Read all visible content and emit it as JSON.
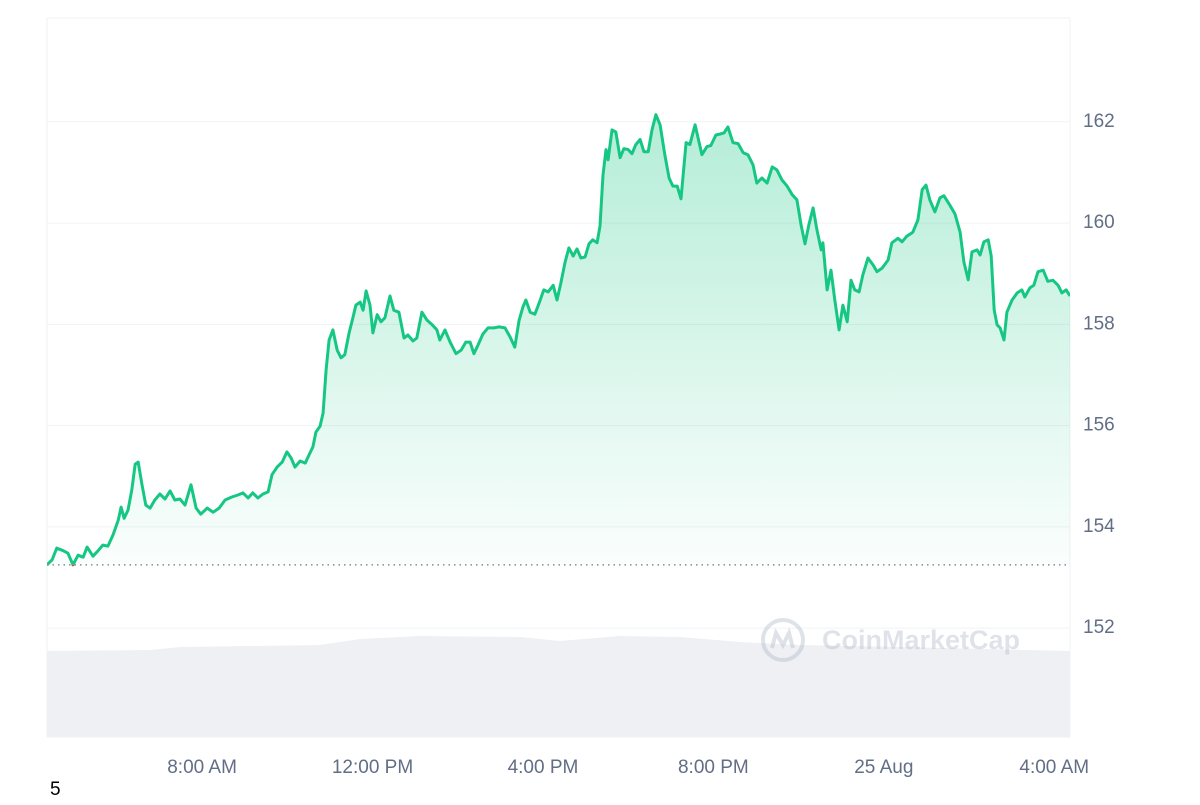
{
  "chart_data": {
    "type": "line",
    "color": "#16c784",
    "negative_color": "#ea3943",
    "grid": true,
    "baseline": 153.25,
    "watermark": "CoinMarketCap",
    "footnote": "5",
    "xlim": [
      4.36,
      28.37
    ],
    "ylim": [
      149.85,
      164.05
    ],
    "yticks": [
      152,
      154,
      156,
      158,
      160,
      162
    ],
    "xticks": [
      {
        "value": 8,
        "label": "8:00 AM"
      },
      {
        "value": 12,
        "label": "12:00 PM"
      },
      {
        "value": 16,
        "label": "4:00 PM"
      },
      {
        "value": 20,
        "label": "8:00 PM"
      },
      {
        "value": 24,
        "label": "25 Aug"
      },
      {
        "value": 28,
        "label": "4:00 AM"
      }
    ],
    "x": [
      4.36,
      4.48,
      4.59,
      4.74,
      4.85,
      4.97,
      5.09,
      5.21,
      5.3,
      5.44,
      5.56,
      5.67,
      5.79,
      5.91,
      6.03,
      6.1,
      6.17,
      6.26,
      6.35,
      6.43,
      6.5,
      6.59,
      6.68,
      6.78,
      6.89,
      7.01,
      7.13,
      7.25,
      7.36,
      7.48,
      7.6,
      7.74,
      7.86,
      7.97,
      8.12,
      8.26,
      8.4,
      8.54,
      8.7,
      8.84,
      8.96,
      9.08,
      9.19,
      9.31,
      9.43,
      9.55,
      9.64,
      9.76,
      9.88,
      9.99,
      10.09,
      10.18,
      10.3,
      10.42,
      10.51,
      10.6,
      10.67,
      10.77,
      10.84,
      10.91,
      10.98,
      11.07,
      11.17,
      11.26,
      11.35,
      11.45,
      11.54,
      11.61,
      11.71,
      11.78,
      11.85,
      11.94,
      12.01,
      12.11,
      12.2,
      12.29,
      12.41,
      12.5,
      12.62,
      12.74,
      12.83,
      12.95,
      13.04,
      13.16,
      13.28,
      13.4,
      13.51,
      13.58,
      13.7,
      13.82,
      13.96,
      14.08,
      14.19,
      14.29,
      14.38,
      14.48,
      14.59,
      14.71,
      14.85,
      14.97,
      15.11,
      15.23,
      15.34,
      15.44,
      15.53,
      15.6,
      15.7,
      15.81,
      15.91,
      16.02,
      16.12,
      16.24,
      16.33,
      16.42,
      16.52,
      16.61,
      16.71,
      16.8,
      16.89,
      16.99,
      17.08,
      17.17,
      17.27,
      17.34,
      17.41,
      17.48,
      17.53,
      17.62,
      17.71,
      17.81,
      17.9,
      18.0,
      18.09,
      18.18,
      18.28,
      18.37,
      18.47,
      18.56,
      18.65,
      18.75,
      18.86,
      18.96,
      19.05,
      19.15,
      19.24,
      19.36,
      19.45,
      19.57,
      19.66,
      19.73,
      19.85,
      19.94,
      20.06,
      20.16,
      20.25,
      20.34,
      20.46,
      20.58,
      20.7,
      20.81,
      20.93,
      21.02,
      21.14,
      21.26,
      21.38,
      21.49,
      21.61,
      21.73,
      21.85,
      21.96,
      22.06,
      22.15,
      22.24,
      22.34,
      22.43,
      22.53,
      22.57,
      22.67,
      22.76,
      22.85,
      22.95,
      23.04,
      23.14,
      23.23,
      23.32,
      23.42,
      23.51,
      23.63,
      23.75,
      23.84,
      23.96,
      24.1,
      24.19,
      24.33,
      24.43,
      24.54,
      24.68,
      24.8,
      24.9,
      24.99,
      25.08,
      25.2,
      25.32,
      25.41,
      25.53,
      25.67,
      25.79,
      25.88,
      25.98,
      26.07,
      26.19,
      26.26,
      26.35,
      26.45,
      26.52,
      26.59,
      26.66,
      26.73,
      26.82,
      26.89,
      27.01,
      27.13,
      27.24,
      27.31,
      27.43,
      27.52,
      27.62,
      27.74,
      27.85,
      27.97,
      28.09,
      28.18,
      28.28,
      28.37
    ],
    "values": [
      153.25,
      153.35,
      153.58,
      153.53,
      153.48,
      153.25,
      153.44,
      153.4,
      153.6,
      153.42,
      153.53,
      153.64,
      153.62,
      153.84,
      154.13,
      154.39,
      154.17,
      154.33,
      154.73,
      155.24,
      155.28,
      154.83,
      154.43,
      154.37,
      154.53,
      154.65,
      154.55,
      154.71,
      154.53,
      154.55,
      154.43,
      154.83,
      154.37,
      154.25,
      154.37,
      154.29,
      154.37,
      154.53,
      154.59,
      154.63,
      154.67,
      154.57,
      154.67,
      154.57,
      154.65,
      154.69,
      155.03,
      155.18,
      155.28,
      155.48,
      155.36,
      155.18,
      155.3,
      155.26,
      155.42,
      155.58,
      155.87,
      155.99,
      156.25,
      157.1,
      157.69,
      157.89,
      157.49,
      157.34,
      157.4,
      157.83,
      158.13,
      158.38,
      158.44,
      158.28,
      158.66,
      158.38,
      157.83,
      158.19,
      158.05,
      158.13,
      158.56,
      158.28,
      158.24,
      157.73,
      157.79,
      157.67,
      157.73,
      158.24,
      158.08,
      157.99,
      157.89,
      157.69,
      157.89,
      157.65,
      157.42,
      157.49,
      157.65,
      157.65,
      157.42,
      157.6,
      157.81,
      157.93,
      157.93,
      157.95,
      157.93,
      157.75,
      157.55,
      158.08,
      158.34,
      158.48,
      158.24,
      158.2,
      158.42,
      158.68,
      158.64,
      158.77,
      158.48,
      158.81,
      159.23,
      159.51,
      159.35,
      159.49,
      159.31,
      159.33,
      159.59,
      159.67,
      159.61,
      159.94,
      160.95,
      161.45,
      161.25,
      161.84,
      161.8,
      161.29,
      161.47,
      161.45,
      161.37,
      161.55,
      161.65,
      161.41,
      161.41,
      161.84,
      162.14,
      161.94,
      161.35,
      160.89,
      160.73,
      160.73,
      160.48,
      161.59,
      161.55,
      161.94,
      161.61,
      161.35,
      161.51,
      161.53,
      161.74,
      161.76,
      161.78,
      161.9,
      161.59,
      161.57,
      161.39,
      161.35,
      161.15,
      160.79,
      160.89,
      160.79,
      161.11,
      161.05,
      160.85,
      160.73,
      160.56,
      160.46,
      159.96,
      159.59,
      159.96,
      160.3,
      159.87,
      159.47,
      159.61,
      158.68,
      159.07,
      158.48,
      157.89,
      158.38,
      158.05,
      158.87,
      158.68,
      158.64,
      158.98,
      159.31,
      159.17,
      159.04,
      159.11,
      159.27,
      159.61,
      159.7,
      159.63,
      159.74,
      159.82,
      160.06,
      160.66,
      160.75,
      160.46,
      160.22,
      160.5,
      160.54,
      160.38,
      160.18,
      159.82,
      159.23,
      158.88,
      159.43,
      159.47,
      159.37,
      159.63,
      159.67,
      159.35,
      158.28,
      157.99,
      157.93,
      157.69,
      158.24,
      158.48,
      158.62,
      158.68,
      158.54,
      158.72,
      158.77,
      159.04,
      159.07,
      158.85,
      158.87,
      158.77,
      158.62,
      158.68,
      158.56
    ]
  }
}
